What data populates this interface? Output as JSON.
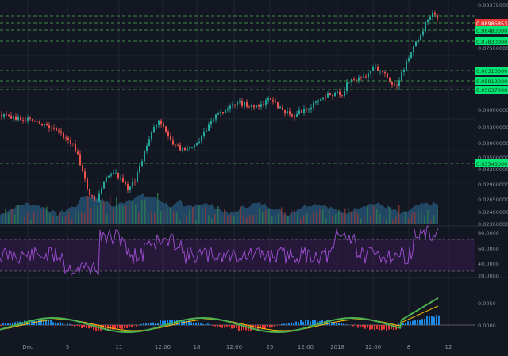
{
  "theme": {
    "background": "#131722",
    "grid": "#1f2430",
    "bull": "#26a69a",
    "bear": "#ef5350",
    "level_line": "#4caf50",
    "level_badge": "#00e676",
    "rsi_line": "#a14fd6",
    "macd_line": "#4caf50",
    "signal_line": "#ffc107"
  },
  "price_axis": {
    "ticks": [
      "0.09375000",
      "0.08985853",
      "0.08480000",
      "0.07830000",
      "0.07500000",
      "0.06310000",
      "0.05912000",
      "0.05637000",
      "0.04900000",
      "0.04300000",
      "0.03900000",
      "0.03500000",
      "0.03343000",
      "0.03200000",
      "0.02900000",
      "0.02650000",
      "0.02400000",
      "0.02300000"
    ]
  },
  "levels": [
    {
      "value": "0.09375000",
      "badge": false
    },
    {
      "value": "0.08985853",
      "badge": true,
      "current": true
    },
    {
      "value": "0.08480000",
      "badge": true
    },
    {
      "value": "0.07830000",
      "badge": true
    },
    {
      "value": "0.06310000",
      "badge": true
    },
    {
      "value": "0.05912000",
      "badge": true
    },
    {
      "value": "0.05637000",
      "badge": true
    },
    {
      "value": "0.03343000",
      "badge": true
    }
  ],
  "rsi_axis": {
    "ticks": [
      "80.0000",
      "60.0000",
      "40.0000",
      "20.0000"
    ]
  },
  "macd_axis": {
    "ticks": [
      "0.0050",
      "0.0000"
    ]
  },
  "time_axis": {
    "labels": [
      "Dec",
      "5",
      "11",
      "12:00",
      "18",
      "12:00",
      "25",
      "12:00",
      "2018",
      "12:00",
      "8",
      "12"
    ]
  }
}
